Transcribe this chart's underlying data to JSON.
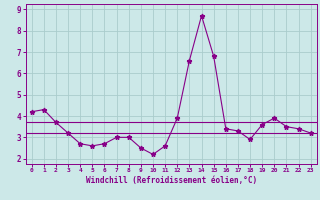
{
  "x": [
    0,
    1,
    2,
    3,
    4,
    5,
    6,
    7,
    8,
    9,
    10,
    11,
    12,
    13,
    14,
    15,
    16,
    17,
    18,
    19,
    20,
    21,
    22,
    23
  ],
  "y_line": [
    4.2,
    4.3,
    3.7,
    3.2,
    2.7,
    2.6,
    2.7,
    3.0,
    3.0,
    2.5,
    2.2,
    2.6,
    3.9,
    6.6,
    8.7,
    6.8,
    3.4,
    3.3,
    2.9,
    3.6,
    3.9,
    3.5,
    3.4,
    3.2
  ],
  "y_hline1": 3.7,
  "y_hline2": 3.2,
  "line_color": "#880088",
  "bg_color": "#cce8e8",
  "grid_color": "#aacccc",
  "xlabel": "Windchill (Refroidissement éolien,°C)",
  "xlim": [
    -0.5,
    23.5
  ],
  "ylim": [
    1.75,
    9.25
  ],
  "yticks": [
    2,
    3,
    4,
    5,
    6,
    7,
    8,
    9
  ],
  "xticks": [
    0,
    1,
    2,
    3,
    4,
    5,
    6,
    7,
    8,
    9,
    10,
    11,
    12,
    13,
    14,
    15,
    16,
    17,
    18,
    19,
    20,
    21,
    22,
    23
  ]
}
